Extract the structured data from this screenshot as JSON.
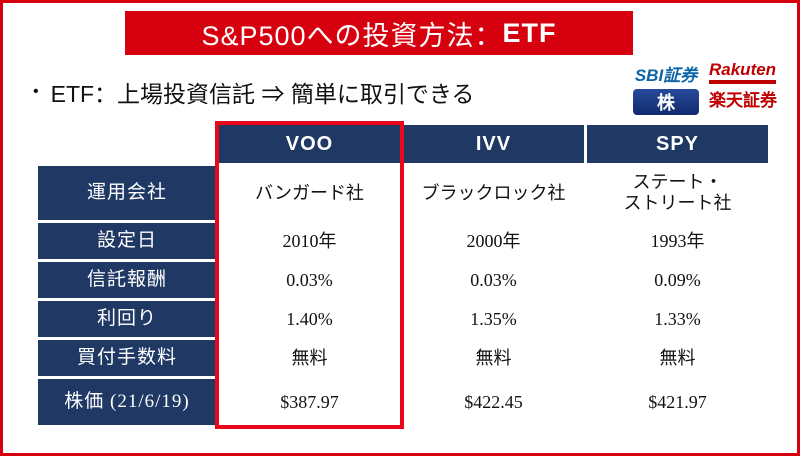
{
  "title": {
    "text": "S&P500への投資方法：",
    "highlight": "ETF"
  },
  "bullet": {
    "marker": "•",
    "text": "ETF：上場投資信託 ⇒ 簡単に取引できる"
  },
  "logos": {
    "sbi": {
      "name": "SBI証券",
      "badge": "株"
    },
    "rakuten": {
      "brand": "Rakuten",
      "name": "楽天証券"
    }
  },
  "table": {
    "header": {
      "labels": [
        "VOO",
        "IVV",
        "SPY"
      ]
    },
    "highlighted_column": "VOO",
    "rows": [
      {
        "label": "運用会社",
        "voo": "バンガード社",
        "ivv": "ブラックロック社",
        "spy": "ステート・\nストリート社"
      },
      {
        "label": "設定日",
        "voo": "2010年",
        "ivv": "2000年",
        "spy": "1993年"
      },
      {
        "label": "信託報酬",
        "voo": "0.03%",
        "ivv": "0.03%",
        "spy": "0.09%"
      },
      {
        "label": "利回り",
        "voo": "1.40%",
        "ivv": "1.35%",
        "spy": "1.33%"
      },
      {
        "label": "買付手数料",
        "voo": "無料",
        "ivv": "無料",
        "spy": "無料"
      },
      {
        "label": "株価 (21/6/19)",
        "voo": "$387.97",
        "ivv": "$422.45",
        "spy": "$421.97"
      }
    ]
  },
  "colors": {
    "navy": "#1f3864",
    "banner_red": "#d7000f",
    "highlight_red": "#e8071b",
    "rakuten_red": "#bf0000",
    "sbi_blue": "#0b63a8"
  }
}
